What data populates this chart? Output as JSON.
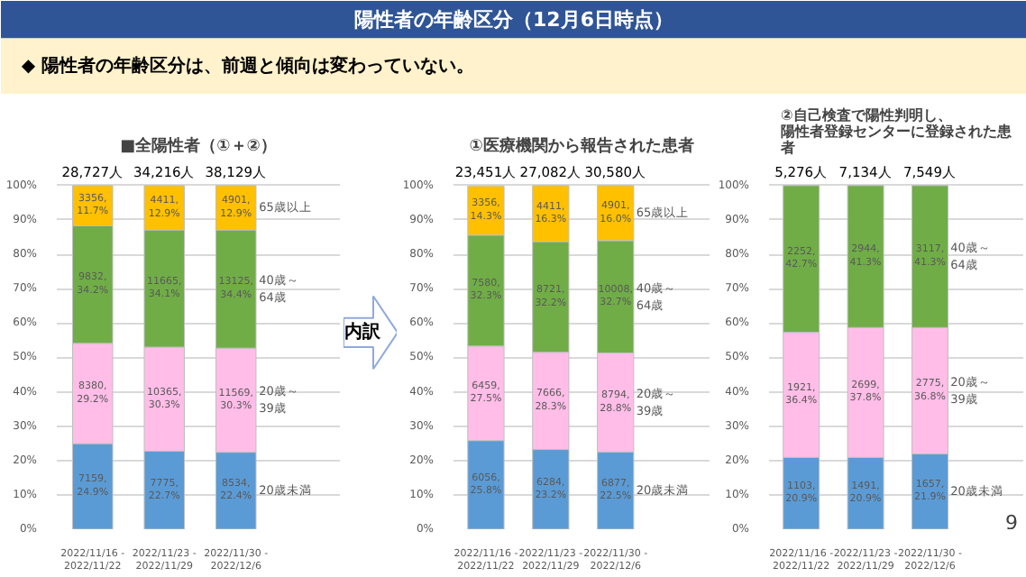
{
  "chart_data": [
    {
      "type": "other",
      "title": "陽性者の年齢区分（12月6日時点）",
      "annotations": [
        "◆  陽性者の年齢区分は、前週と傾向は変わっていない。",
        "内訳",
        "9"
      ]
    },
    {
      "type": "bar",
      "stacked": true,
      "title": "■全陽性者（①＋②）",
      "categories": [
        "2022/11/16 -\n2022/11/22",
        "2022/11/23 -\n2022/11/29",
        "2022/11/30 -\n2022/12/6"
      ],
      "ylim": [
        0,
        100
      ],
      "yticks": [
        {
          "value": 0,
          "label": "0%"
        },
        {
          "value": 10,
          "label": "10%"
        },
        {
          "value": 20,
          "label": "20%"
        },
        {
          "value": 30,
          "label": "30%"
        },
        {
          "value": 40,
          "label": "40%"
        },
        {
          "value": 50,
          "label": "50%"
        },
        {
          "value": 60,
          "label": "60%"
        },
        {
          "value": 70,
          "label": "70%"
        },
        {
          "value": 80,
          "label": "80%"
        },
        {
          "value": 90,
          "label": "90%"
        },
        {
          "value": 100,
          "label": "100%"
        }
      ],
      "grid": "y",
      "annotations": [
        "28,727人",
        "34,216人",
        "38,129人"
      ],
      "series": [
        {
          "name": "20歳未満",
          "color": "#5b9bd5",
          "values": [
            24.9,
            22.7,
            22.4
          ],
          "value_labels": [
            "7159,\n24.9%",
            "7775,\n22.7%",
            "8534,\n22.4%"
          ]
        },
        {
          "name": "20歳～39歳",
          "color": "#ffbde8",
          "values": [
            29.2,
            30.3,
            30.3
          ],
          "value_labels": [
            "8380,\n29.2%",
            "10365,\n30.3%",
            "11569,\n30.3%"
          ]
        },
        {
          "name": "40歳～64歳",
          "color": "#70ad47",
          "values": [
            34.2,
            34.1,
            34.4
          ],
          "value_labels": [
            "9832,\n34.2%",
            "11665,\n34.1%",
            "13125,\n34.4%"
          ]
        },
        {
          "name": "65歳以上",
          "color": "#ffc000",
          "values": [
            11.7,
            12.9,
            12.9
          ],
          "value_labels": [
            "3356,\n11.7%",
            "4411,\n12.9%",
            "4901,\n12.9%"
          ]
        }
      ]
    },
    {
      "type": "bar",
      "stacked": true,
      "title": "①医療機関から報告された患者",
      "categories": [
        "2022/11/16 -\n2022/11/22",
        "2022/11/23 -\n2022/11/29",
        "2022/11/30 -\n2022/12/6"
      ],
      "ylim": [
        0,
        100
      ],
      "yticks": [
        {
          "value": 0,
          "label": "0%"
        },
        {
          "value": 10,
          "label": "10%"
        },
        {
          "value": 20,
          "label": "20%"
        },
        {
          "value": 30,
          "label": "30%"
        },
        {
          "value": 40,
          "label": "40%"
        },
        {
          "value": 50,
          "label": "50%"
        },
        {
          "value": 60,
          "label": "60%"
        },
        {
          "value": 70,
          "label": "70%"
        },
        {
          "value": 80,
          "label": "80%"
        },
        {
          "value": 90,
          "label": "90%"
        },
        {
          "value": 100,
          "label": "100%"
        }
      ],
      "grid": "y",
      "annotations": [
        "23,451人",
        "27,082人",
        "30,580人"
      ],
      "series": [
        {
          "name": "20歳未満",
          "color": "#5b9bd5",
          "values": [
            25.8,
            23.2,
            22.5
          ],
          "value_labels": [
            "6056,\n25.8%",
            "6284,\n23.2%",
            "6877,\n22.5%"
          ]
        },
        {
          "name": "20歳～39歳",
          "color": "#ffbde8",
          "values": [
            27.5,
            28.3,
            28.8
          ],
          "value_labels": [
            "6459,\n27.5%",
            "7666,\n28.3%",
            "8794,\n28.8%"
          ]
        },
        {
          "name": "40歳～64歳",
          "color": "#70ad47",
          "values": [
            32.3,
            32.2,
            32.7
          ],
          "value_labels": [
            "7580,\n32.3%",
            "8721,\n32.2%",
            "10008,\n32.7%"
          ]
        },
        {
          "name": "65歳以上",
          "color": "#ffc000",
          "values": [
            14.3,
            16.3,
            16.0
          ],
          "value_labels": [
            "3356,\n14.3%",
            "4411,\n16.3%",
            "4901,\n16.0%"
          ]
        }
      ]
    },
    {
      "type": "bar",
      "stacked": true,
      "title": "②自己検査で陽性判明し、陽性者登録センターに登録された患者",
      "categories": [
        "2022/11/16 -\n2022/11/22",
        "2022/11/23 -\n2022/11/29",
        "2022/11/30 -\n2022/12/6"
      ],
      "ylim": [
        0,
        100
      ],
      "yticks": [
        {
          "value": 0,
          "label": "0%"
        },
        {
          "value": 10,
          "label": "10%"
        },
        {
          "value": 20,
          "label": "20%"
        },
        {
          "value": 30,
          "label": "30%"
        },
        {
          "value": 40,
          "label": "40%"
        },
        {
          "value": 50,
          "label": "50%"
        },
        {
          "value": 60,
          "label": "60%"
        },
        {
          "value": 70,
          "label": "70%"
        },
        {
          "value": 80,
          "label": "80%"
        },
        {
          "value": 90,
          "label": "90%"
        },
        {
          "value": 100,
          "label": "100%"
        }
      ],
      "grid": "y",
      "annotations": [
        "5,276人",
        "7,134人",
        "7,549人"
      ],
      "series": [
        {
          "name": "20歳未満",
          "color": "#5b9bd5",
          "values": [
            20.9,
            20.9,
            21.9
          ],
          "value_labels": [
            "1103,\n20.9%",
            "1491,\n20.9%",
            "1657,\n21.9%"
          ]
        },
        {
          "name": "20歳～39歳",
          "color": "#ffbde8",
          "values": [
            36.4,
            37.8,
            36.8
          ],
          "value_labels": [
            "1921,\n36.4%",
            "2699,\n37.8%",
            "2775,\n36.8%"
          ]
        },
        {
          "name": "40歳～64歳",
          "color": "#70ad47",
          "values": [
            42.7,
            41.3,
            41.3
          ],
          "value_labels": [
            "2252,\n42.7%",
            "2944,\n41.3%",
            "3117,\n41.3%"
          ]
        }
      ]
    }
  ]
}
